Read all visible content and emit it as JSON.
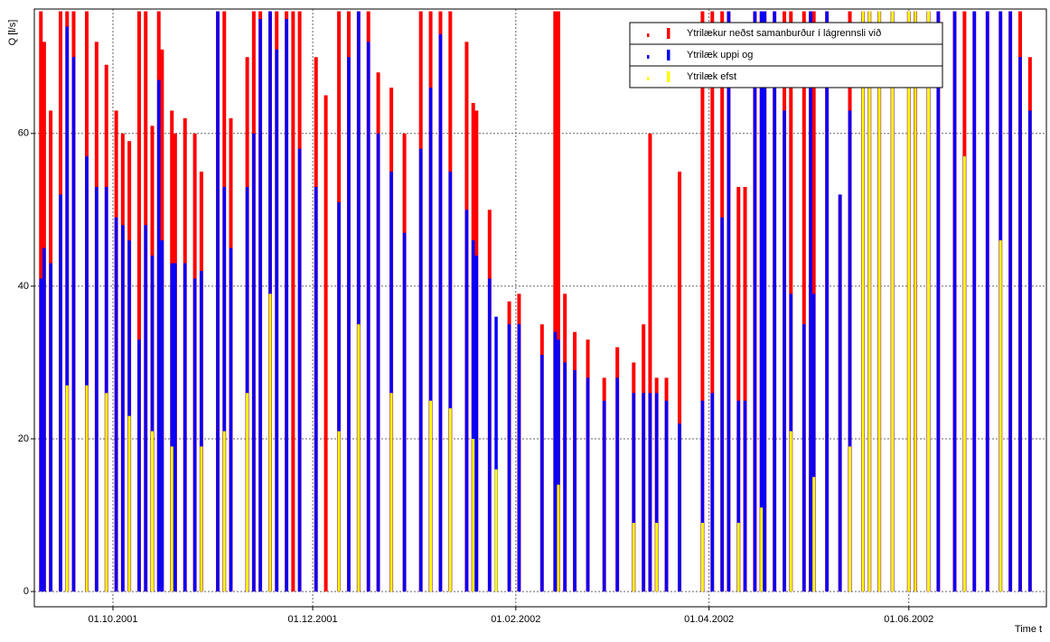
{
  "chart_data": {
    "type": "bar",
    "ylabel": "Q [l/s]",
    "xlabel": "Time t",
    "xlim": [
      "2001-09-07",
      "2002-07-13"
    ],
    "ylim": [
      -2,
      76.3
    ],
    "yticks": [
      0,
      20,
      40,
      60
    ],
    "xticks": [
      {
        "value": "2001-10-01",
        "label": "01.10.2001"
      },
      {
        "value": "2001-12-01",
        "label": "01.12.2001"
      },
      {
        "value": "2002-02-01",
        "label": "01.02.2002"
      },
      {
        "value": "2002-04-01",
        "label": "01.04.2002"
      },
      {
        "value": "2002-06-01",
        "label": "01.06.2002"
      }
    ],
    "grid": true,
    "legend": "upper right",
    "x": [
      "2001-09-09",
      "2001-09-10",
      "2001-09-12",
      "2001-09-15",
      "2001-09-17",
      "2001-09-19",
      "2001-09-23",
      "2001-09-26",
      "2001-09-29",
      "2001-10-02",
      "2001-10-04",
      "2001-10-06",
      "2001-10-09",
      "2001-10-11",
      "2001-10-13",
      "2001-10-15",
      "2001-10-16",
      "2001-10-19",
      "2001-10-20",
      "2001-10-23",
      "2001-10-26",
      "2001-10-28",
      "2001-11-02",
      "2001-11-04",
      "2001-11-06",
      "2001-11-11",
      "2001-11-13",
      "2001-11-15",
      "2001-11-18",
      "2001-11-20",
      "2001-11-23",
      "2001-11-25",
      "2001-11-27",
      "2001-12-02",
      "2001-12-05",
      "2001-12-09",
      "2001-12-12",
      "2001-12-15",
      "2001-12-18",
      "2001-12-21",
      "2001-12-25",
      "2001-12-29",
      "2002-01-03",
      "2002-01-06",
      "2002-01-09",
      "2002-01-12",
      "2002-01-17",
      "2002-01-19",
      "2002-01-20",
      "2002-01-24",
      "2002-01-26",
      "2002-01-30",
      "2002-02-02",
      "2002-02-09",
      "2002-02-13",
      "2002-02-14",
      "2002-02-16",
      "2002-02-19",
      "2002-02-23",
      "2002-02-28",
      "2002-03-04",
      "2002-03-09",
      "2002-03-12",
      "2002-03-14",
      "2002-03-16",
      "2002-03-19",
      "2002-03-23",
      "2002-03-30",
      "2002-04-02",
      "2002-04-05",
      "2002-04-07",
      "2002-04-10",
      "2002-04-12",
      "2002-04-15",
      "2002-04-17",
      "2002-04-18",
      "2002-04-21",
      "2002-04-24",
      "2002-04-26",
      "2002-04-30",
      "2002-05-02",
      "2002-05-03",
      "2002-05-07",
      "2002-05-11",
      "2002-05-14",
      "2002-05-18",
      "2002-05-20",
      "2002-05-23",
      "2002-05-27",
      "2002-06-01",
      "2002-06-03",
      "2002-06-07",
      "2002-06-10",
      "2002-06-15",
      "2002-06-18",
      "2002-06-21",
      "2002-06-25",
      "2002-06-29",
      "2002-07-02",
      "2002-07-05",
      "2002-07-08"
    ],
    "series": [
      {
        "name": "Ytrilækur neðst samanburður í lágrennsli við",
        "color": "#ff0000",
        "width": 4,
        "values": [
          76,
          72,
          63,
          76,
          76,
          76,
          76,
          72,
          69,
          63,
          60,
          59,
          76,
          76,
          61,
          76,
          71,
          63,
          60,
          62,
          60,
          55,
          76,
          76,
          62,
          70,
          76,
          76,
          76,
          76,
          76,
          76,
          76,
          70,
          65,
          76,
          76,
          76,
          76,
          68,
          66,
          60,
          76,
          76,
          76,
          76,
          72,
          64,
          63,
          50,
          null,
          38,
          39,
          35,
          76,
          76,
          39,
          34,
          33,
          28,
          32,
          30,
          35,
          60,
          28,
          28,
          55,
          76,
          76,
          76,
          76,
          53,
          53,
          76,
          76,
          76,
          76,
          76,
          76,
          76,
          76,
          76,
          76,
          52,
          76,
          76,
          76,
          76,
          76,
          76,
          76,
          76,
          76,
          76,
          76,
          76,
          76,
          76,
          76,
          76,
          70
        ]
      },
      {
        "name": "Ytrilæk uppi og",
        "color": "#0000ff",
        "width": 3.5,
        "values": [
          41,
          45,
          43,
          52,
          74,
          70,
          57,
          53,
          53,
          49,
          48,
          46,
          33,
          48,
          44,
          67,
          46,
          43,
          43,
          43,
          41,
          42,
          76,
          53,
          45,
          53,
          60,
          75,
          76,
          71,
          75,
          null,
          58,
          53,
          null,
          51,
          70,
          76,
          72,
          60,
          55,
          47,
          58,
          66,
          73,
          55,
          50,
          46,
          44,
          41,
          36,
          35,
          35,
          31,
          34,
          33,
          30,
          29,
          28,
          25,
          28,
          26,
          26,
          26,
          26,
          25,
          22,
          25,
          26,
          49,
          76,
          25,
          25,
          76,
          76,
          76,
          76,
          63,
          39,
          35,
          76,
          39,
          76,
          52,
          63,
          76,
          76,
          76,
          76,
          76,
          76,
          76,
          76,
          76,
          57,
          76,
          76,
          76,
          76,
          70,
          63
        ]
      },
      {
        "name": "Ytrilæk efst",
        "color": "#ffff00",
        "width": 3,
        "values": [
          null,
          null,
          null,
          null,
          27,
          null,
          27,
          null,
          26,
          null,
          null,
          23,
          null,
          null,
          21,
          null,
          null,
          19,
          null,
          null,
          null,
          19,
          null,
          21,
          null,
          26,
          null,
          null,
          39,
          null,
          null,
          null,
          null,
          null,
          null,
          21,
          null,
          35,
          null,
          null,
          26,
          null,
          null,
          25,
          null,
          24,
          null,
          20,
          null,
          null,
          16,
          null,
          null,
          null,
          null,
          14,
          null,
          null,
          null,
          null,
          null,
          9,
          null,
          null,
          9,
          null,
          null,
          9,
          null,
          null,
          null,
          9,
          null,
          null,
          11,
          null,
          null,
          null,
          21,
          null,
          null,
          15,
          null,
          null,
          19,
          76,
          76,
          76,
          76,
          76,
          76,
          76,
          null,
          null,
          57,
          null,
          null,
          46,
          null,
          null,
          null
        ]
      }
    ]
  }
}
